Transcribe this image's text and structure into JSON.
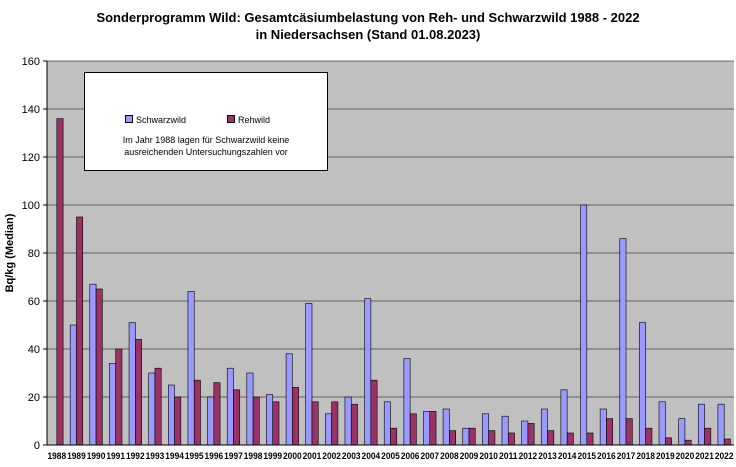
{
  "chart_data": {
    "type": "bar",
    "title_lines": [
      "Sonderprogramm Wild: Gesamtcäsiumbelastung  von Reh- und Schwarzwild 1988 - 2022",
      "in Niedersachsen (Stand  01.08.2023)"
    ],
    "ylabel": "Bq/kg (Median)",
    "xlabel": "",
    "ylim": [
      0,
      160
    ],
    "yticks": [
      0,
      20,
      40,
      60,
      80,
      100,
      120,
      140,
      160
    ],
    "grid": true,
    "legend_placement": "top-left",
    "categories": [
      "1988",
      "1989",
      "1990",
      "1991",
      "1992",
      "1993",
      "1994",
      "1995",
      "1996",
      "1997",
      "1998",
      "1999",
      "2000",
      "2001",
      "2002",
      "2003",
      "2004",
      "2005",
      "2006",
      "2007",
      "2008",
      "2009",
      "2010",
      "2011",
      "2012",
      "2013",
      "2014",
      "2015",
      "2016",
      "2017",
      "2018",
      "2019",
      "2020",
      "2021",
      "2022"
    ],
    "series": [
      {
        "name": "Schwarzwild",
        "color": "#9999ff",
        "values": [
          null,
          50,
          67,
          34,
          51,
          30,
          25,
          64,
          20,
          32,
          30,
          21,
          38,
          59,
          13,
          20,
          61,
          18,
          36,
          14,
          15,
          7,
          13,
          12,
          10,
          15,
          23,
          100,
          15,
          86,
          51,
          18,
          11,
          17,
          17
        ]
      },
      {
        "name": "Rehwild",
        "color": "#993366",
        "values": [
          136,
          95,
          65,
          40,
          44,
          32,
          20,
          27,
          26,
          23,
          20,
          18,
          24,
          18,
          18,
          17,
          27,
          7,
          13,
          14,
          6,
          7,
          6,
          5,
          9,
          6,
          5,
          5,
          11,
          11,
          7,
          3,
          2,
          7,
          2.5
        ]
      }
    ],
    "note_lines": [
      "Im Jahr 1988 lagen für Schwarzwild keine",
      "ausreichenden Untersuchungszahlen  vor"
    ],
    "colors": {
      "plot_background": "#c0c0c0",
      "gridline": "#000000"
    }
  }
}
